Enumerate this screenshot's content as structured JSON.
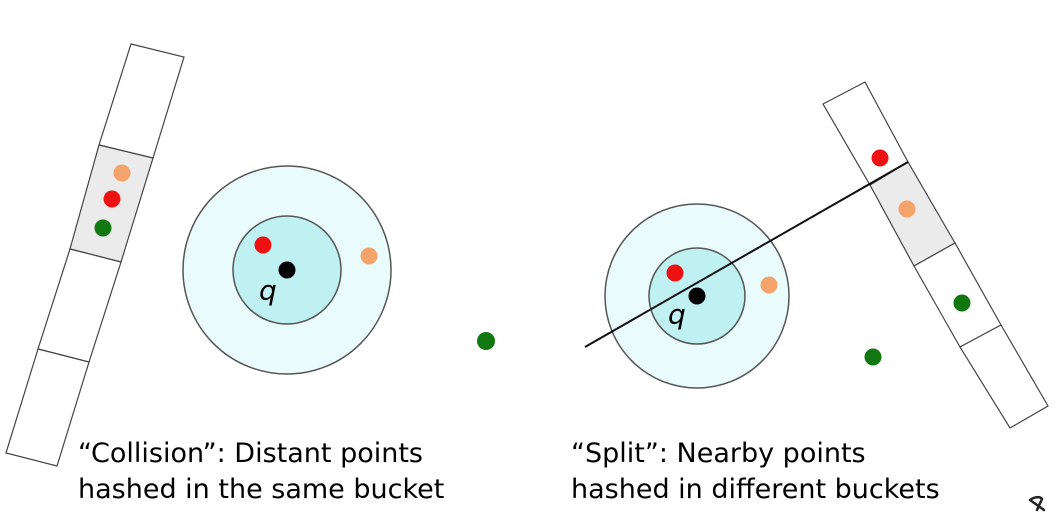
{
  "colors": {
    "near_point": "#ee1111",
    "mid_point": "#f4a36a",
    "far_point": "#117711",
    "query_point": "#000000",
    "inner_circle": "#bff0f2",
    "outer_circle": "#eafbfc",
    "shaded_bucket": "#ebebeb"
  },
  "left_panel": {
    "query_label": "q",
    "caption_line1": "“Collision”: Distant points",
    "caption_line2": "hashed in the same bucket"
  },
  "right_panel": {
    "query_label": "q",
    "caption_line1": "“Split”: Nearby points",
    "caption_line2": "hashed in different buckets"
  }
}
